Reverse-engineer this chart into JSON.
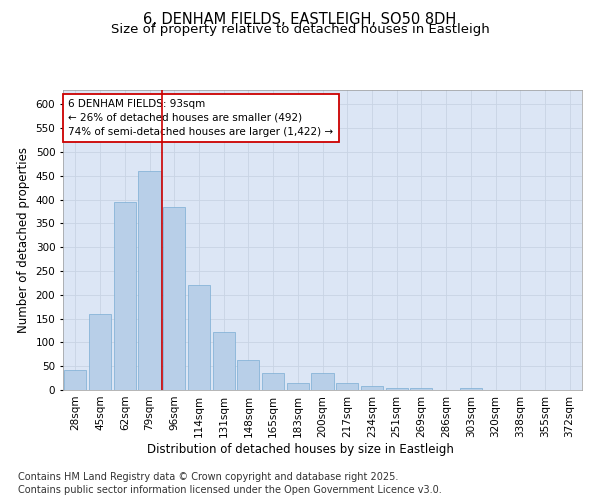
{
  "title_line1": "6, DENHAM FIELDS, EASTLEIGH, SO50 8DH",
  "title_line2": "Size of property relative to detached houses in Eastleigh",
  "xlabel": "Distribution of detached houses by size in Eastleigh",
  "ylabel": "Number of detached properties",
  "categories": [
    "28sqm",
    "45sqm",
    "62sqm",
    "79sqm",
    "96sqm",
    "114sqm",
    "131sqm",
    "148sqm",
    "165sqm",
    "183sqm",
    "200sqm",
    "217sqm",
    "234sqm",
    "251sqm",
    "269sqm",
    "286sqm",
    "303sqm",
    "320sqm",
    "338sqm",
    "355sqm",
    "372sqm"
  ],
  "values": [
    42,
    160,
    395,
    460,
    385,
    220,
    122,
    62,
    35,
    14,
    35,
    14,
    8,
    5,
    5,
    0,
    5,
    0,
    0,
    0,
    0
  ],
  "bar_color": "#b8cfe8",
  "bar_edge_color": "#7aadd4",
  "grid_color": "#c8d4e4",
  "background_color": "#dce6f5",
  "vline_x_index": 4,
  "vline_color": "#cc0000",
  "annotation_text": "6 DENHAM FIELDS: 93sqm\n← 26% of detached houses are smaller (492)\n74% of semi-detached houses are larger (1,422) →",
  "annotation_box_edge": "#cc0000",
  "ylim": [
    0,
    630
  ],
  "yticks": [
    0,
    50,
    100,
    150,
    200,
    250,
    300,
    350,
    400,
    450,
    500,
    550,
    600
  ],
  "footer_line1": "Contains HM Land Registry data © Crown copyright and database right 2025.",
  "footer_line2": "Contains public sector information licensed under the Open Government Licence v3.0.",
  "title_fontsize": 10.5,
  "subtitle_fontsize": 9.5,
  "axis_label_fontsize": 8.5,
  "tick_fontsize": 7.5,
  "annotation_fontsize": 7.5,
  "footer_fontsize": 7
}
